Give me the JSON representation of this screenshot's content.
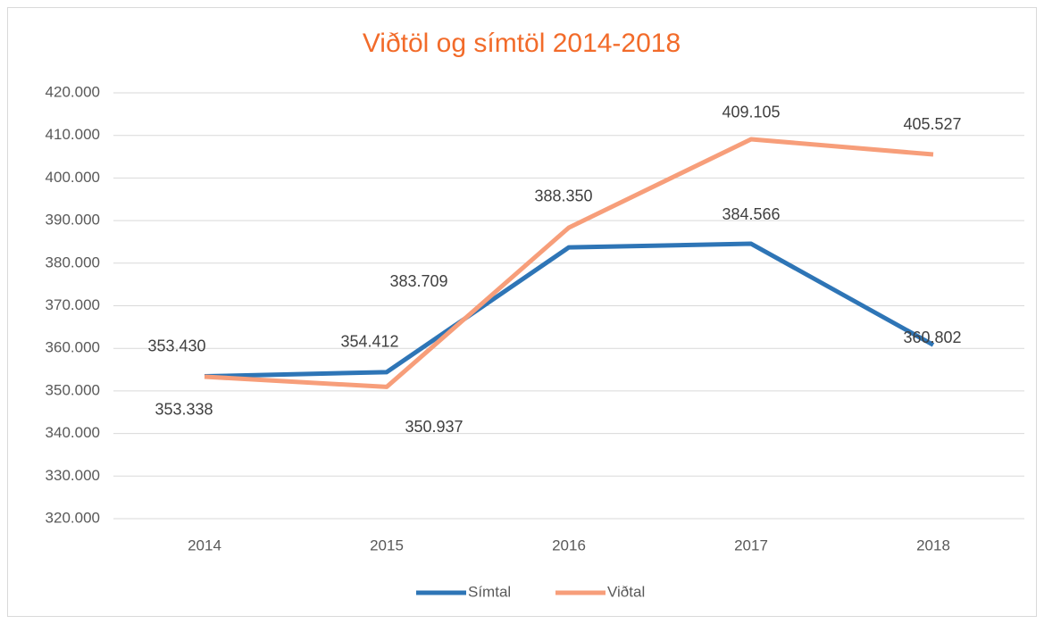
{
  "chart_data": {
    "type": "line",
    "title": "Viðtöl og símtöl 2014-2018",
    "categories": [
      "2014",
      "2015",
      "2016",
      "2017",
      "2018"
    ],
    "series": [
      {
        "name": "Símtal",
        "color": "#2e75b6",
        "values": [
          353430,
          354412,
          383709,
          384566,
          360802
        ],
        "value_labels": [
          "353.430",
          "354.412",
          "383.709",
          "384.566",
          "360.802"
        ]
      },
      {
        "name": "Viðtal",
        "color": "#f79e7a",
        "values": [
          353338,
          350937,
          388350,
          409105,
          405527
        ],
        "value_labels": [
          "353.338",
          "350.937",
          "388.350",
          "409.105",
          "405.527"
        ]
      }
    ],
    "ylim": [
      320000,
      420000
    ],
    "yticks": [
      {
        "value": 320000,
        "label": "320.000"
      },
      {
        "value": 330000,
        "label": "330.000"
      },
      {
        "value": 340000,
        "label": "340.000"
      },
      {
        "value": 350000,
        "label": "350.000"
      },
      {
        "value": 360000,
        "label": "360.000"
      },
      {
        "value": 370000,
        "label": "370.000"
      },
      {
        "value": 380000,
        "label": "380.000"
      },
      {
        "value": 390000,
        "label": "390.000"
      },
      {
        "value": 400000,
        "label": "400.000"
      },
      {
        "value": 410000,
        "label": "410.000"
      },
      {
        "value": 420000,
        "label": "420.000"
      }
    ],
    "grid": true,
    "legend": "bottom"
  }
}
